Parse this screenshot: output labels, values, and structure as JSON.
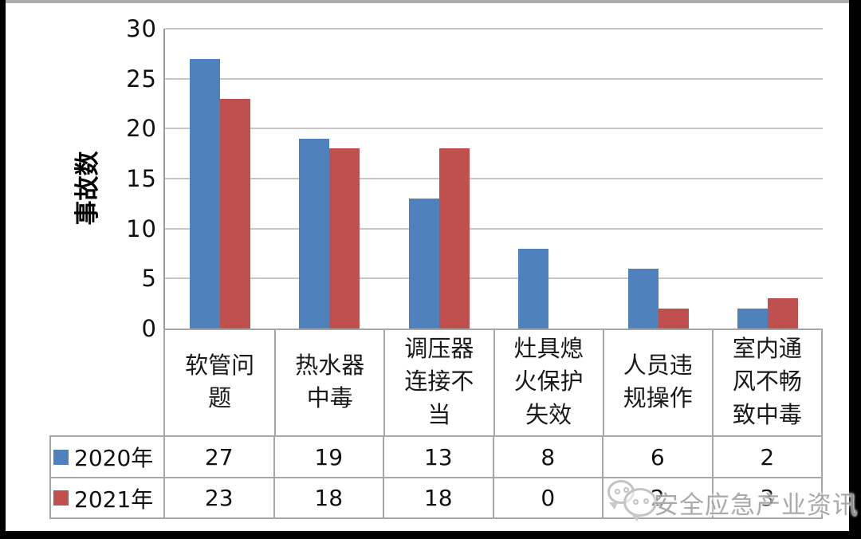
{
  "chart_data": {
    "type": "bar",
    "title": "",
    "ylabel": "事故数",
    "xlabel": "",
    "ylim": [
      0,
      30
    ],
    "yticks": [
      0,
      5,
      10,
      15,
      20,
      25,
      30
    ],
    "grid": true,
    "legend_position": "bottom-data-table",
    "categories": [
      "软管问题",
      "热水器中毒",
      "调压器连接不当",
      "灶具熄火保护失效",
      "人员违规操作",
      "室内通风不畅致中毒"
    ],
    "series": [
      {
        "name": "2020年",
        "color": "#4f81bd",
        "values": [
          27,
          19,
          13,
          8,
          6,
          2
        ]
      },
      {
        "name": "2021年",
        "color": "#c0504d",
        "values": [
          23,
          18,
          18,
          0,
          2,
          3
        ]
      }
    ]
  },
  "watermark": {
    "text": "安全应急产业资讯",
    "icon": "wechat-logo-icon"
  },
  "colors": {
    "bar_2020": "#4f81bd",
    "bar_2021": "#c0504d",
    "gridline": "#c6c6c6",
    "axis_line": "#9a9a9a",
    "table_border": "#a6a6a6",
    "frame": "#000000"
  }
}
